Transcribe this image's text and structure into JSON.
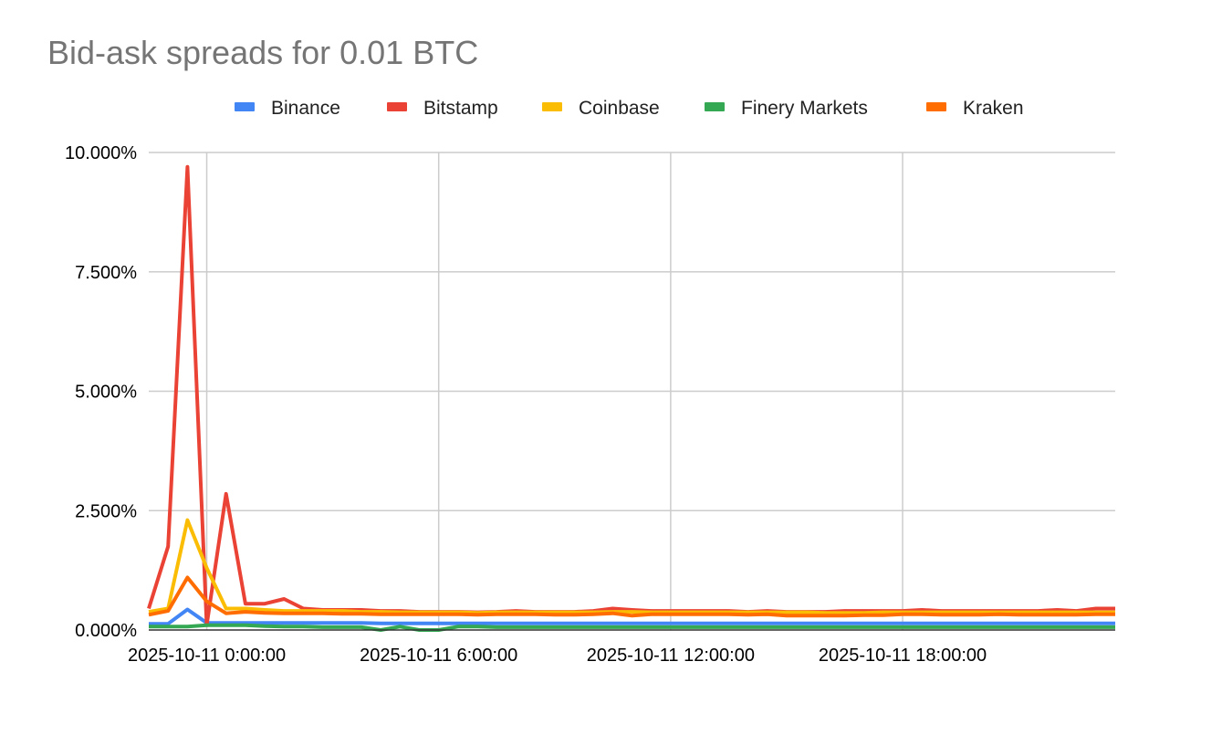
{
  "chart_data": {
    "type": "line",
    "title": "Bid-ask spreads for 0.01 BTC",
    "xlabel": "",
    "ylabel": "",
    "legend_position": "top",
    "grid": true,
    "ylim": [
      0,
      10
    ],
    "y_ticks": [
      "0.000%",
      "2.500%",
      "5.000%",
      "7.500%",
      "10.000%"
    ],
    "y_tick_values": [
      0,
      2.5,
      5,
      7.5,
      10
    ],
    "x_ticks": [
      "2025-10-11 0:00:00",
      "2025-10-11 6:00:00",
      "2025-10-11 12:00:00",
      "2025-10-11 18:00:00"
    ],
    "x_tick_hours": [
      0,
      6,
      12,
      18
    ],
    "x_range_hours": [
      -1.5,
      23.5
    ],
    "x_hours": [
      -1.5,
      -1,
      -0.5,
      0,
      0.5,
      1,
      1.5,
      2,
      2.5,
      3,
      3.5,
      4,
      4.5,
      5,
      5.5,
      6,
      6.5,
      7,
      7.5,
      8,
      8.5,
      9,
      9.5,
      10,
      10.5,
      11,
      11.5,
      12,
      12.5,
      13,
      13.5,
      14,
      14.5,
      15,
      15.5,
      16,
      16.5,
      17,
      17.5,
      18,
      18.5,
      19,
      19.5,
      20,
      20.5,
      21,
      21.5,
      22,
      22.5,
      23,
      23.5
    ],
    "series": [
      {
        "name": "Binance",
        "color": "#4285f4",
        "values": [
          0.13,
          0.13,
          0.43,
          0.15,
          0.15,
          0.15,
          0.15,
          0.15,
          0.15,
          0.15,
          0.15,
          0.15,
          0.14,
          0.14,
          0.14,
          0.14,
          0.14,
          0.14,
          0.14,
          0.14,
          0.14,
          0.14,
          0.14,
          0.14,
          0.14,
          0.14,
          0.14,
          0.14,
          0.14,
          0.14,
          0.14,
          0.14,
          0.14,
          0.14,
          0.14,
          0.14,
          0.14,
          0.14,
          0.14,
          0.14,
          0.14,
          0.14,
          0.14,
          0.14,
          0.14,
          0.14,
          0.14,
          0.14,
          0.14,
          0.14,
          0.14
        ]
      },
      {
        "name": "Bitstamp",
        "color": "#ea4335",
        "values": [
          0.45,
          1.75,
          9.7,
          0.1,
          2.85,
          0.55,
          0.55,
          0.65,
          0.45,
          0.42,
          0.42,
          0.42,
          0.4,
          0.4,
          0.38,
          0.38,
          0.38,
          0.37,
          0.38,
          0.4,
          0.38,
          0.38,
          0.38,
          0.4,
          0.45,
          0.42,
          0.4,
          0.4,
          0.4,
          0.4,
          0.4,
          0.38,
          0.4,
          0.38,
          0.38,
          0.38,
          0.4,
          0.4,
          0.4,
          0.4,
          0.42,
          0.4,
          0.4,
          0.4,
          0.4,
          0.4,
          0.4,
          0.42,
          0.4,
          0.45,
          0.45
        ]
      },
      {
        "name": "Coinbase",
        "color": "#fbbc04",
        "values": [
          0.38,
          0.45,
          2.3,
          1.3,
          0.45,
          0.45,
          0.42,
          0.4,
          0.4,
          0.4,
          0.4,
          0.38,
          0.38,
          0.37,
          0.37,
          0.37,
          0.37,
          0.36,
          0.37,
          0.37,
          0.37,
          0.37,
          0.37,
          0.37,
          0.38,
          0.38,
          0.37,
          0.37,
          0.37,
          0.37,
          0.37,
          0.37,
          0.37,
          0.37,
          0.37,
          0.36,
          0.36,
          0.36,
          0.37,
          0.37,
          0.37,
          0.37,
          0.37,
          0.37,
          0.37,
          0.37,
          0.37,
          0.37,
          0.37,
          0.37,
          0.37
        ]
      },
      {
        "name": "Finery Markets",
        "color": "#34a853",
        "values": [
          0.07,
          0.07,
          0.07,
          0.1,
          0.1,
          0.1,
          0.08,
          0.07,
          0.07,
          0.06,
          0.06,
          0.06,
          0.0,
          0.07,
          0.0,
          0.0,
          0.07,
          0.07,
          0.06,
          0.06,
          0.06,
          0.06,
          0.06,
          0.06,
          0.06,
          0.06,
          0.06,
          0.06,
          0.06,
          0.06,
          0.06,
          0.06,
          0.06,
          0.06,
          0.06,
          0.06,
          0.06,
          0.06,
          0.06,
          0.06,
          0.06,
          0.06,
          0.06,
          0.06,
          0.06,
          0.06,
          0.06,
          0.06,
          0.06,
          0.06,
          0.06
        ]
      },
      {
        "name": "Kraken",
        "color": "#ff6d01",
        "values": [
          0.32,
          0.4,
          1.1,
          0.6,
          0.35,
          0.38,
          0.36,
          0.35,
          0.35,
          0.35,
          0.34,
          0.34,
          0.33,
          0.33,
          0.33,
          0.33,
          0.33,
          0.32,
          0.33,
          0.33,
          0.33,
          0.32,
          0.32,
          0.33,
          0.35,
          0.3,
          0.33,
          0.33,
          0.33,
          0.33,
          0.33,
          0.32,
          0.33,
          0.3,
          0.3,
          0.3,
          0.3,
          0.31,
          0.31,
          0.33,
          0.33,
          0.32,
          0.32,
          0.32,
          0.33,
          0.32,
          0.32,
          0.32,
          0.32,
          0.33,
          0.33
        ]
      }
    ]
  }
}
